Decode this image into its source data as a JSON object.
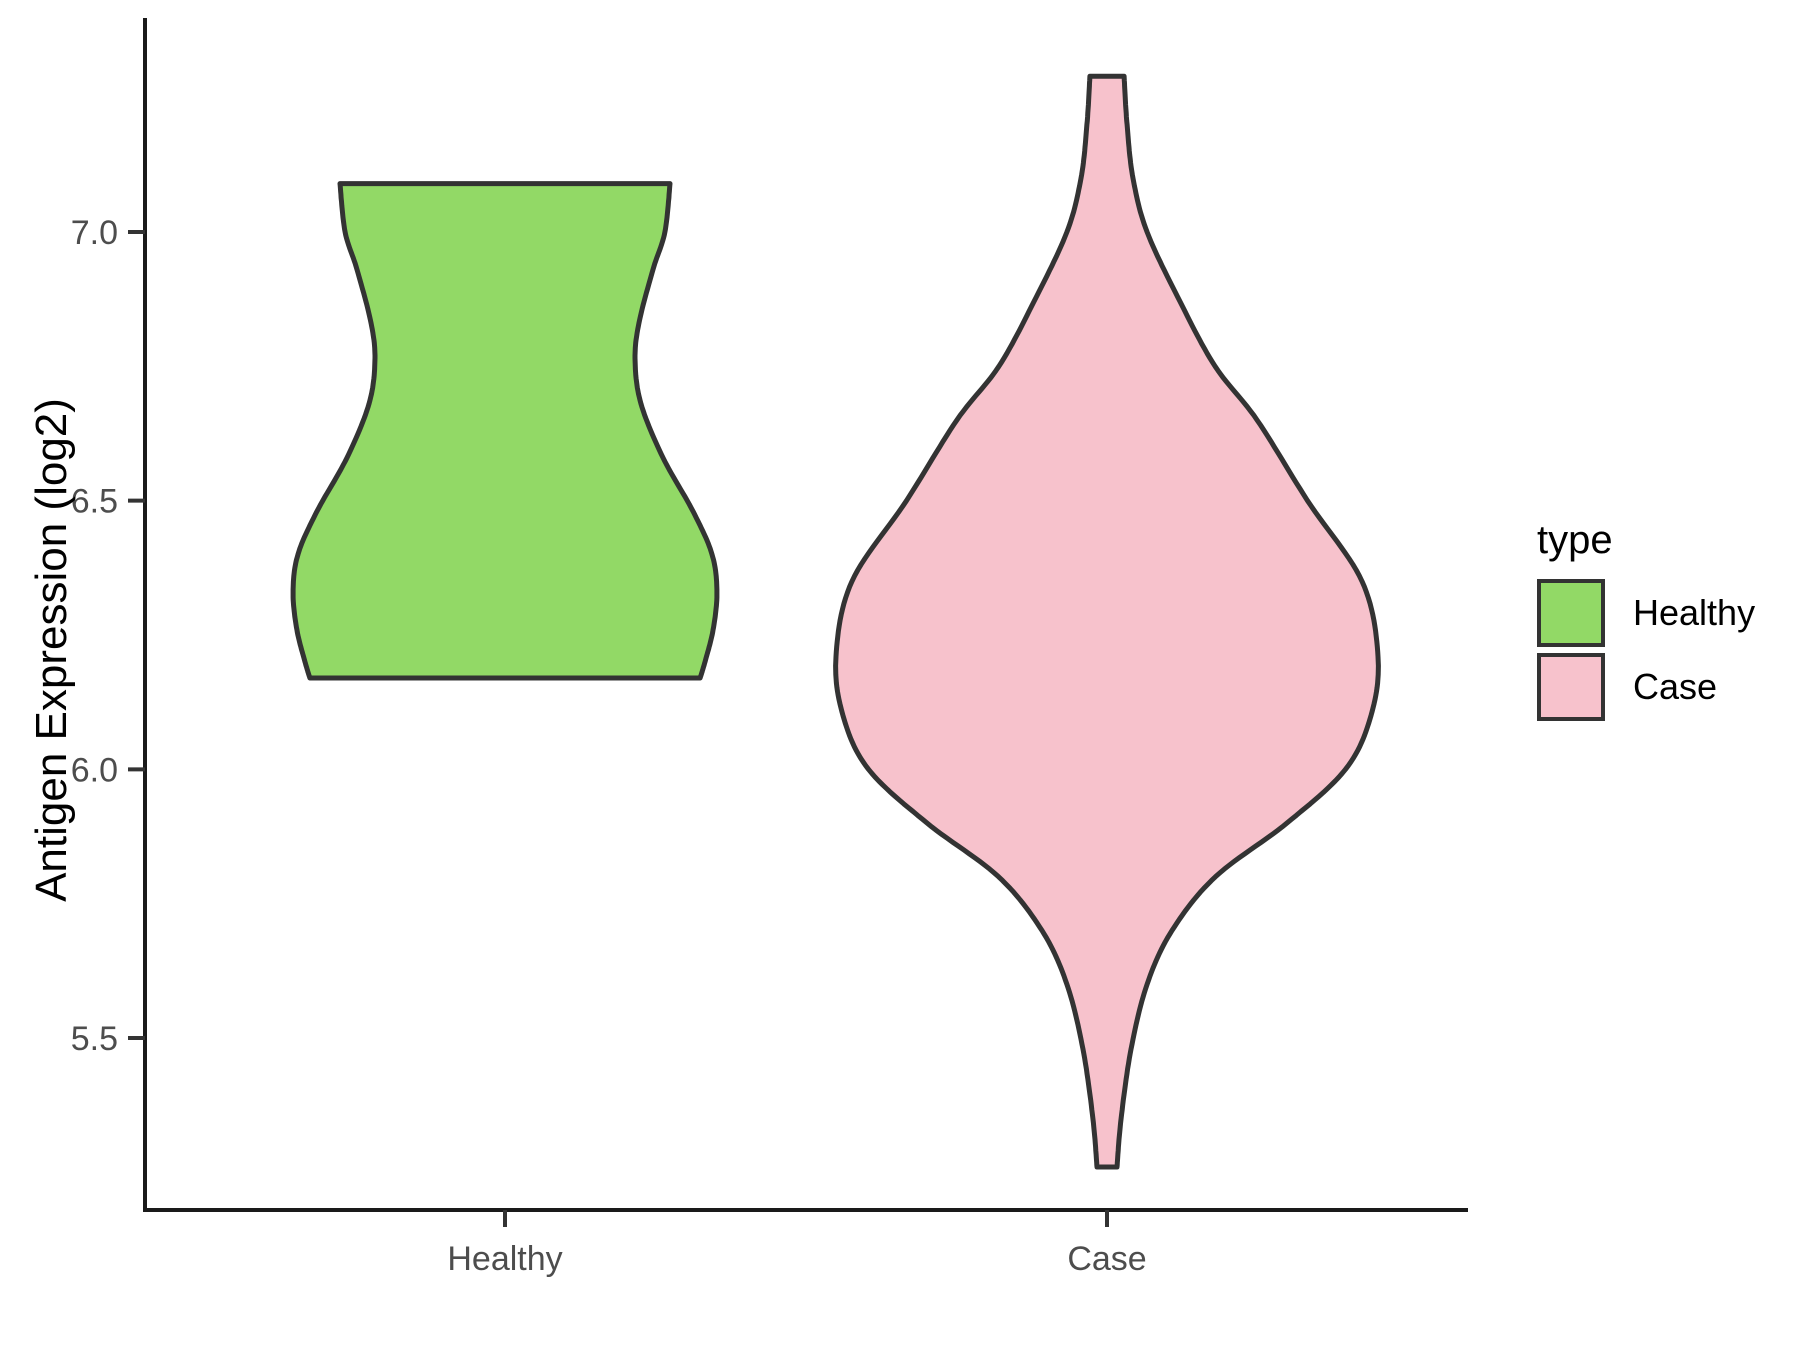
{
  "chart_data": {
    "type": "violin",
    "y_axis": {
      "label": "Antigen Expression (log2)",
      "ticks": [
        {
          "label": "7.0",
          "value": 7.0
        },
        {
          "label": "6.5",
          "value": 6.5
        },
        {
          "label": "6.0",
          "value": 6.0
        },
        {
          "label": "5.5",
          "value": 5.5
        }
      ],
      "panel_range": [
        5.18,
        7.39
      ],
      "grid": "off"
    },
    "x_axis": {
      "label": "",
      "categories": [
        "Healthy",
        "Case"
      ]
    },
    "legend": {
      "title": "type",
      "position": "right",
      "entries": [
        {
          "label": "Healthy",
          "color": "#92d966"
        },
        {
          "label": "Case",
          "color": "#f7c2cc"
        }
      ]
    },
    "series": [
      {
        "name": "Healthy",
        "fill": "#92d966",
        "outline": "#333333",
        "y_min": 6.17,
        "y_max": 7.09,
        "shape": "truncated (flat top and bottom)",
        "density_profile": [
          [
            7.09,
            0.609
          ],
          [
            7.0,
            0.59
          ],
          [
            6.93,
            0.546
          ],
          [
            6.83,
            0.494
          ],
          [
            6.76,
            0.48
          ],
          [
            6.68,
            0.502
          ],
          [
            6.58,
            0.583
          ],
          [
            6.48,
            0.694
          ],
          [
            6.4,
            0.764
          ],
          [
            6.33,
            0.782
          ],
          [
            6.26,
            0.768
          ],
          [
            6.2,
            0.738
          ],
          [
            6.17,
            0.72
          ]
        ]
      },
      {
        "name": "Case",
        "fill": "#f7c2cc",
        "outline": "#333333",
        "y_min": 5.26,
        "y_max": 7.29,
        "shape": "full bell with long tapered tails",
        "density_profile": [
          [
            7.29,
            0.063
          ],
          [
            7.2,
            0.074
          ],
          [
            7.1,
            0.096
          ],
          [
            7.0,
            0.148
          ],
          [
            6.87,
            0.27
          ],
          [
            6.75,
            0.399
          ],
          [
            6.65,
            0.554
          ],
          [
            6.5,
            0.74
          ],
          [
            6.35,
            0.941
          ],
          [
            6.21,
            1.0
          ],
          [
            6.1,
            0.974
          ],
          [
            6.0,
            0.88
          ],
          [
            5.9,
            0.664
          ],
          [
            5.8,
            0.4
          ],
          [
            5.7,
            0.24
          ],
          [
            5.6,
            0.148
          ],
          [
            5.48,
            0.089
          ],
          [
            5.35,
            0.052
          ],
          [
            5.26,
            0.037
          ]
        ]
      }
    ]
  }
}
